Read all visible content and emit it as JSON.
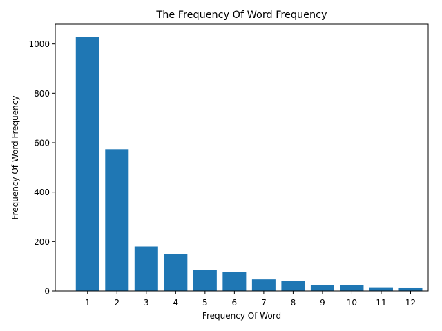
{
  "chart_data": {
    "type": "bar",
    "title": "The Frequency Of Word Frequency",
    "xlabel": "Frequency Of Word",
    "ylabel": "Frequency Of Word Frequency",
    "categories": [
      "1",
      "2",
      "3",
      "4",
      "5",
      "6",
      "7",
      "8",
      "9",
      "10",
      "11",
      "12"
    ],
    "values": [
      1027,
      574,
      180,
      150,
      84,
      76,
      47,
      41,
      25,
      25,
      15,
      14
    ],
    "ylim": [
      0,
      1080
    ],
    "yticks": [
      0,
      200,
      400,
      600,
      800,
      1000
    ],
    "grid": false,
    "bar_color": "#1f77b4"
  }
}
